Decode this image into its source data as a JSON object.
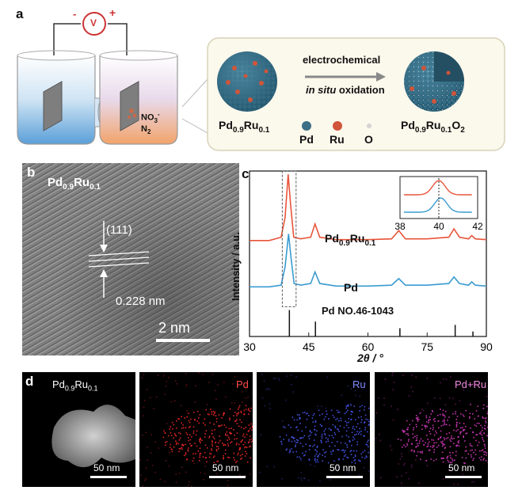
{
  "panel_a": {
    "label": "a",
    "voltmeter": {
      "minus": "-",
      "symbol": "V",
      "plus": "+"
    },
    "electrolyte": {
      "ion": "NO",
      "ion_sub": "3",
      "ion_sup": "-",
      "gas": "N",
      "gas_sub": "2"
    },
    "arrow_top": "electrochemical",
    "arrow_bottom_italic": "in situ",
    "arrow_bottom": " oxidation",
    "left_particle": {
      "pre": "Pd",
      "s1": "0.9",
      "mid": "Ru",
      "s2": "0.1"
    },
    "right_particle": {
      "pre": "Pd",
      "s1": "0.9",
      "mid": "Ru",
      "s2": "0.1",
      "post": "O",
      "s3": "2"
    },
    "legend": [
      {
        "label": "Pd",
        "color": "#3c6f86"
      },
      {
        "label": "Ru",
        "color": "#d0553a"
      },
      {
        "label": "O",
        "color": "#dddddd"
      }
    ]
  },
  "panel_b": {
    "label": "b",
    "title": {
      "pre": "Pd",
      "s1": "0.9",
      "mid": "Ru",
      "s2": "0.1"
    },
    "plane": "(111)",
    "spacing": "0.228 nm",
    "scale": "2 nm"
  },
  "panel_c": {
    "label": "c"
  },
  "chart_data": {
    "type": "line",
    "xlabel": "2θ / °",
    "ylabel": "Intensity / a.u.",
    "xlim": [
      30,
      90
    ],
    "xticks": [
      30,
      45,
      60,
      75,
      90
    ],
    "series": [
      {
        "name": "Pd0.9Ru0.1",
        "color": "#e8553a",
        "x": [
          30,
          35,
          38,
          39,
          39.8,
          40.4,
          41.2,
          43,
          45.5,
          46.6,
          47.8,
          52,
          60,
          66,
          67.8,
          69.5,
          75,
          80.5,
          81.8,
          83.2,
          85.5,
          86.3,
          87.2,
          90
        ],
        "y": [
          0.58,
          0.58,
          0.6,
          0.72,
          0.98,
          0.8,
          0.6,
          0.59,
          0.6,
          0.68,
          0.6,
          0.585,
          0.585,
          0.59,
          0.64,
          0.59,
          0.59,
          0.6,
          0.65,
          0.6,
          0.59,
          0.61,
          0.59,
          0.585
        ]
      },
      {
        "name": "Pd",
        "color": "#3a9bd0",
        "x": [
          30,
          35,
          38,
          39,
          39.9,
          40.5,
          41.3,
          43,
          45.5,
          46.6,
          47.8,
          52,
          60,
          66,
          67.8,
          69.5,
          75,
          80.5,
          81.8,
          83.2,
          85.5,
          86.3,
          87.2,
          90
        ],
        "y": [
          0.3,
          0.3,
          0.31,
          0.42,
          0.62,
          0.48,
          0.32,
          0.31,
          0.32,
          0.39,
          0.32,
          0.305,
          0.305,
          0.31,
          0.35,
          0.31,
          0.31,
          0.32,
          0.36,
          0.32,
          0.31,
          0.33,
          0.31,
          0.305
        ]
      }
    ],
    "series_labels": {
      "ru_pre": "Pd",
      "ru_s1": "0.9",
      "ru_mid": "Ru",
      "ru_s2": "0.1",
      "pd": "Pd"
    },
    "reference": {
      "label": "Pd NO.46-1043",
      "sticks": [
        {
          "x": 40.1,
          "h": 0.16
        },
        {
          "x": 46.7,
          "h": 0.09
        },
        {
          "x": 68.1,
          "h": 0.05
        },
        {
          "x": 82.1,
          "h": 0.07
        },
        {
          "x": 86.6,
          "h": 0.03
        }
      ]
    },
    "inset": {
      "xlim": [
        38,
        42
      ],
      "xticks": [
        38,
        40,
        42
      ]
    }
  },
  "panel_d": {
    "label": "d",
    "maps": [
      {
        "label": "Pd",
        "pre": "Pd",
        "s1": "0.9",
        "mid": "Ru",
        "s2": "0.1",
        "color": "#ffffff",
        "scale": "50 nm"
      },
      {
        "label": "Pd",
        "color": "#ff2a2a",
        "scale": "50 nm"
      },
      {
        "label": "Ru",
        "color": "#4a5cff",
        "scale": "50 nm"
      },
      {
        "label": "Pd+Ru",
        "color": "#e23cc8",
        "scale": "50 nm"
      }
    ]
  }
}
